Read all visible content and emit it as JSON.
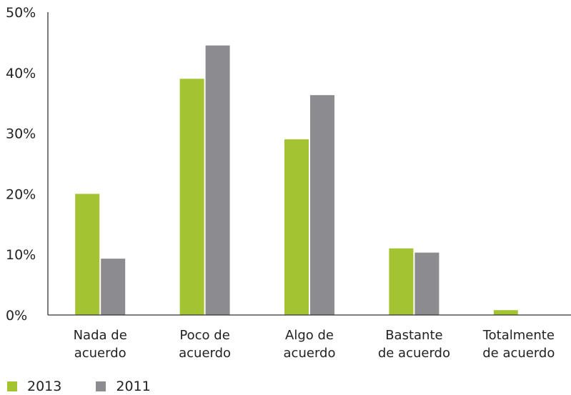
{
  "chart_data": {
    "type": "bar",
    "categories": [
      [
        "Nada de",
        "acuerdo"
      ],
      [
        "Poco de",
        "acuerdo"
      ],
      [
        "Algo de",
        "acuerdo"
      ],
      [
        "Bastante",
        "de acuerdo"
      ],
      [
        "Totalmente",
        "de acuerdo"
      ]
    ],
    "series": [
      {
        "name": "2013",
        "color": "#a3c331",
        "values": [
          20,
          39,
          29,
          11,
          0.8
        ]
      },
      {
        "name": "2011",
        "color": "#8c8b90",
        "values": [
          9.3,
          44.5,
          36.3,
          10.3,
          0
        ]
      }
    ],
    "ylim": [
      0,
      50
    ],
    "yticks": [
      "0%",
      "10%",
      "20%",
      "30%",
      "40%",
      "50%"
    ],
    "grid": false,
    "legend_position": "bottom-left"
  }
}
